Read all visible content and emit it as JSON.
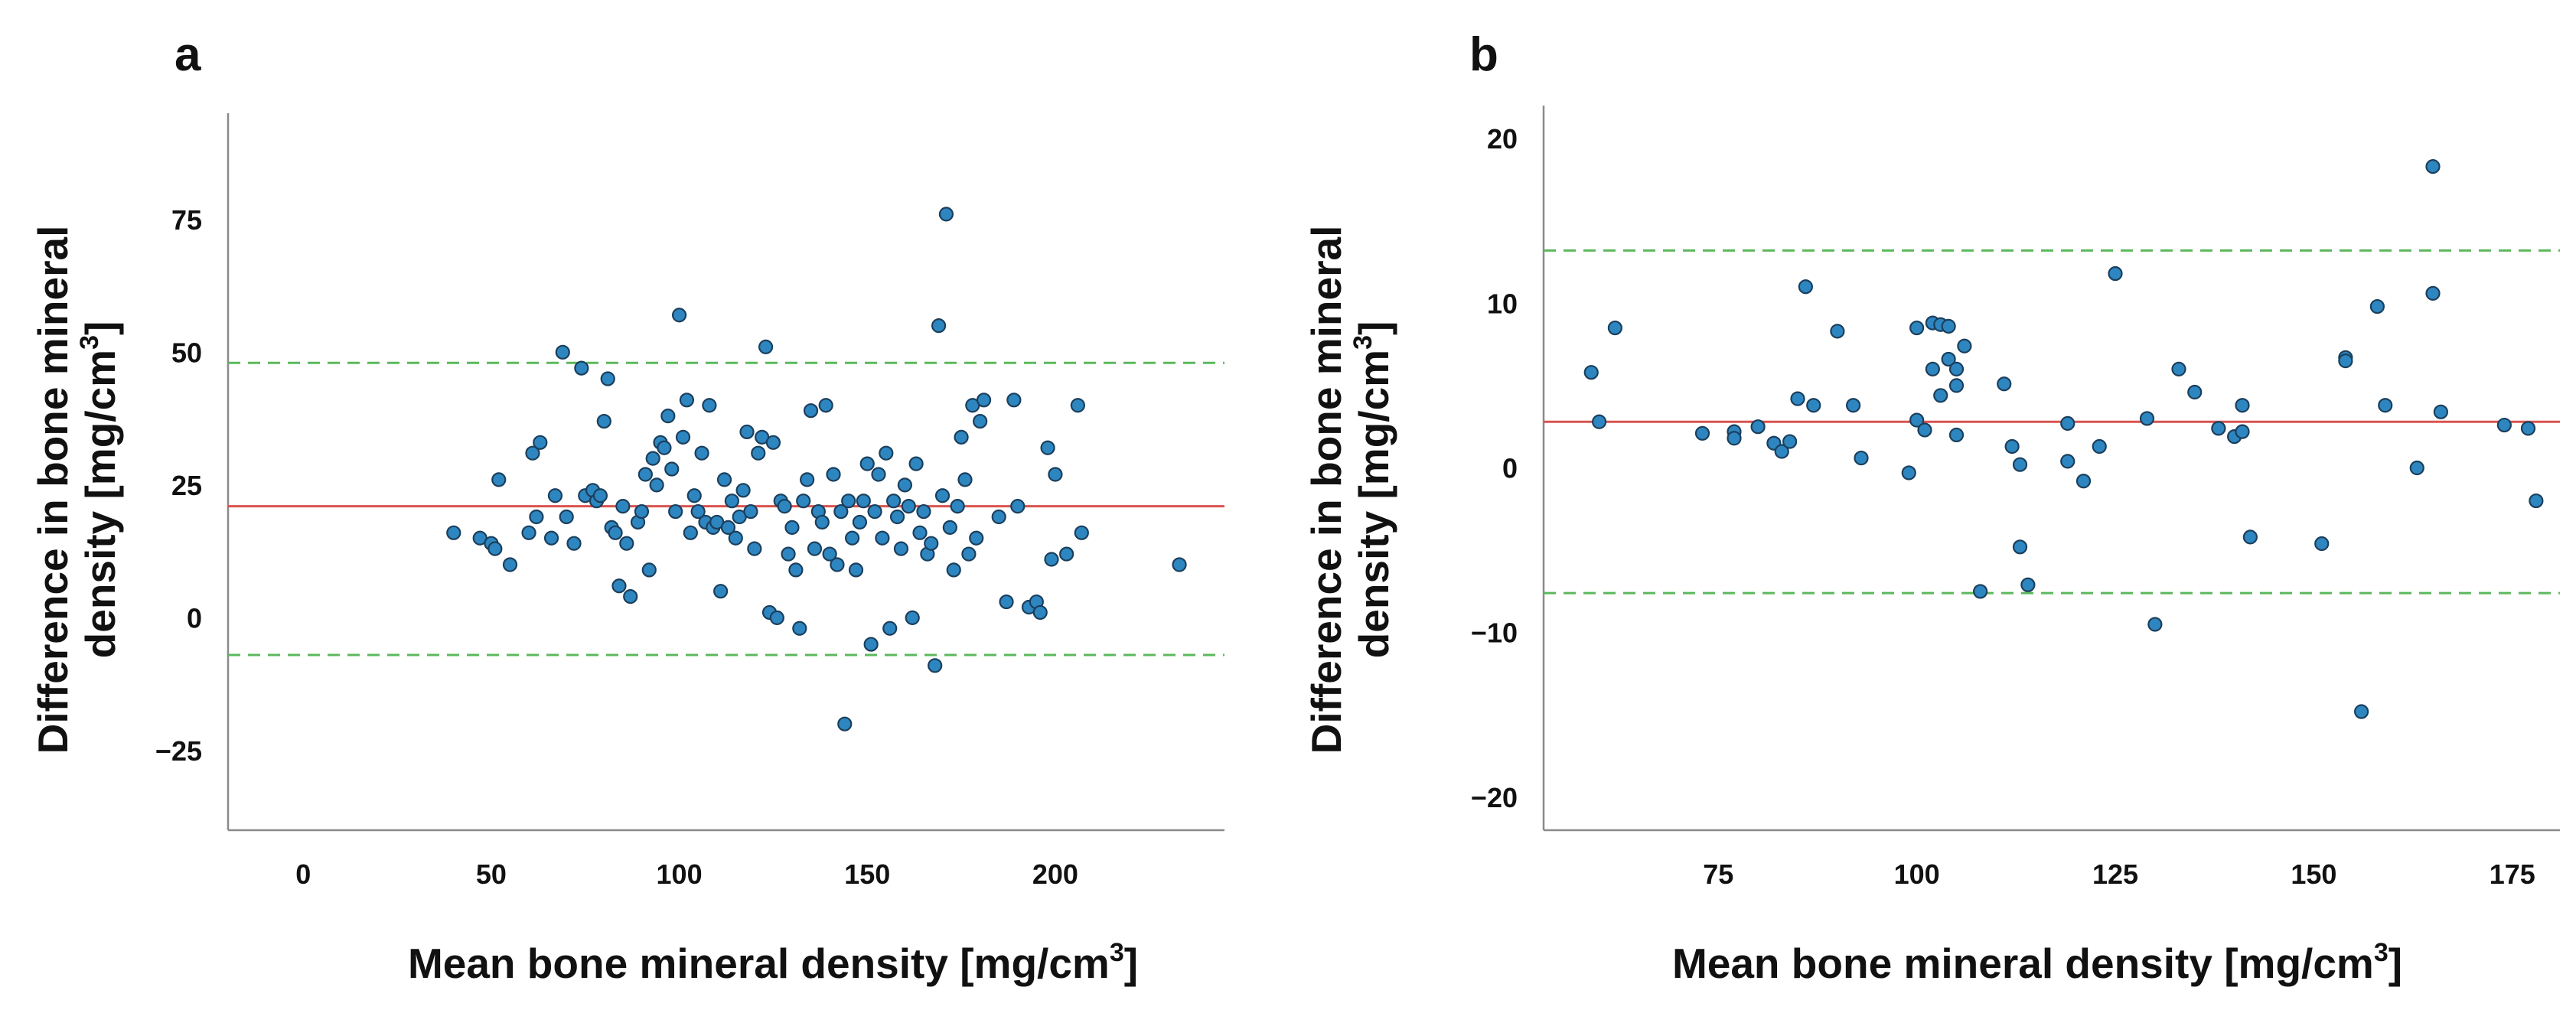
{
  "chart_data": [
    {
      "type": "scatter",
      "panel": "a",
      "title": "",
      "xlabel": "Mean bone mineral density [mg/cm",
      "xlabel_sup": "3",
      "xlabel_end": "]",
      "ylabel_line1": "Difference in bone mineral",
      "ylabel_line2": "density [mg/cm",
      "ylabel_sup": "3",
      "ylabel_end": "]",
      "xlim": [
        -20,
        245
      ],
      "ylim": [
        -40,
        95
      ],
      "xticks": [
        0,
        50,
        100,
        150,
        200
      ],
      "yticks": [
        -25,
        0,
        25,
        50,
        75
      ],
      "xtick_labels": [
        "0",
        "50",
        "100",
        "150",
        "200"
      ],
      "ytick_labels": [
        "−25",
        "0",
        "25",
        "50",
        "75"
      ],
      "mean_line": 21,
      "loa_upper": 48,
      "loa_lower": -7,
      "mean_color": "#d9534f",
      "loa_color": "#5cb85c",
      "point_color": "#2e86c1",
      "points": [
        [
          40,
          16
        ],
        [
          47,
          15
        ],
        [
          50,
          14
        ],
        [
          51,
          13
        ],
        [
          52,
          26
        ],
        [
          55,
          10
        ],
        [
          60,
          16
        ],
        [
          61,
          31
        ],
        [
          62,
          19
        ],
        [
          63,
          33
        ],
        [
          66,
          15
        ],
        [
          67,
          23
        ],
        [
          69,
          50
        ],
        [
          70,
          19
        ],
        [
          72,
          14
        ],
        [
          74,
          47
        ],
        [
          75,
          23
        ],
        [
          77,
          24
        ],
        [
          78,
          22
        ],
        [
          79,
          23
        ],
        [
          80,
          37
        ],
        [
          81,
          45
        ],
        [
          82,
          17
        ],
        [
          83,
          16
        ],
        [
          84,
          6
        ],
        [
          85,
          21
        ],
        [
          86,
          14
        ],
        [
          87,
          4
        ],
        [
          89,
          18
        ],
        [
          90,
          20
        ],
        [
          91,
          27
        ],
        [
          92,
          9
        ],
        [
          93,
          30
        ],
        [
          94,
          25
        ],
        [
          95,
          33
        ],
        [
          96,
          32
        ],
        [
          97,
          38
        ],
        [
          98,
          28
        ],
        [
          99,
          20
        ],
        [
          100,
          57
        ],
        [
          101,
          34
        ],
        [
          102,
          41
        ],
        [
          103,
          16
        ],
        [
          104,
          23
        ],
        [
          105,
          20
        ],
        [
          106,
          31
        ],
        [
          107,
          18
        ],
        [
          108,
          40
        ],
        [
          109,
          17
        ],
        [
          110,
          18
        ],
        [
          111,
          5
        ],
        [
          112,
          26
        ],
        [
          113,
          17
        ],
        [
          114,
          22
        ],
        [
          115,
          15
        ],
        [
          116,
          19
        ],
        [
          117,
          24
        ],
        [
          118,
          35
        ],
        [
          119,
          20
        ],
        [
          120,
          13
        ],
        [
          121,
          31
        ],
        [
          122,
          34
        ],
        [
          123,
          51
        ],
        [
          124,
          1
        ],
        [
          125,
          33
        ],
        [
          126,
          0
        ],
        [
          127,
          22
        ],
        [
          128,
          21
        ],
        [
          129,
          12
        ],
        [
          130,
          17
        ],
        [
          131,
          9
        ],
        [
          132,
          -2
        ],
        [
          133,
          22
        ],
        [
          134,
          26
        ],
        [
          135,
          39
        ],
        [
          136,
          13
        ],
        [
          137,
          20
        ],
        [
          138,
          18
        ],
        [
          139,
          40
        ],
        [
          140,
          12
        ],
        [
          141,
          27
        ],
        [
          142,
          10
        ],
        [
          143,
          20
        ],
        [
          144,
          -20
        ],
        [
          145,
          22
        ],
        [
          146,
          15
        ],
        [
          147,
          9
        ],
        [
          148,
          18
        ],
        [
          149,
          22
        ],
        [
          150,
          29
        ],
        [
          151,
          -5
        ],
        [
          152,
          20
        ],
        [
          153,
          27
        ],
        [
          154,
          15
        ],
        [
          155,
          31
        ],
        [
          156,
          -2
        ],
        [
          157,
          22
        ],
        [
          158,
          19
        ],
        [
          159,
          13
        ],
        [
          160,
          25
        ],
        [
          161,
          21
        ],
        [
          162,
          0
        ],
        [
          163,
          29
        ],
        [
          164,
          16
        ],
        [
          165,
          20
        ],
        [
          166,
          12
        ],
        [
          167,
          14
        ],
        [
          168,
          -9
        ],
        [
          169,
          55
        ],
        [
          170,
          23
        ],
        [
          171,
          76
        ],
        [
          172,
          17
        ],
        [
          173,
          9
        ],
        [
          174,
          21
        ],
        [
          175,
          34
        ],
        [
          176,
          26
        ],
        [
          177,
          12
        ],
        [
          178,
          40
        ],
        [
          179,
          15
        ],
        [
          180,
          37
        ],
        [
          181,
          41
        ],
        [
          185,
          19
        ],
        [
          187,
          3
        ],
        [
          189,
          41
        ],
        [
          190,
          21
        ],
        [
          193,
          2
        ],
        [
          195,
          3
        ],
        [
          196,
          1
        ],
        [
          198,
          32
        ],
        [
          199,
          11
        ],
        [
          200,
          27
        ],
        [
          203,
          12
        ],
        [
          206,
          40
        ],
        [
          207,
          16
        ],
        [
          233,
          10
        ]
      ]
    },
    {
      "type": "scatter",
      "panel": "b",
      "title": "",
      "xlabel": "Mean bone mineral density [mg/cm",
      "xlabel_sup": "3",
      "xlabel_end": "]",
      "ylabel_line1": "Difference in bone mineral",
      "ylabel_line2": "density [mg/cm",
      "ylabel_sup": "3",
      "ylabel_end": "]",
      "xlim": [
        53,
        181
      ],
      "ylim": [
        -22,
        22
      ],
      "xticks": [
        75,
        100,
        125,
        150,
        175
      ],
      "yticks": [
        -20,
        -10,
        0,
        10,
        20
      ],
      "xtick_labels": [
        "75",
        "100",
        "125",
        "150",
        "175"
      ],
      "ytick_labels": [
        "−20",
        "−10",
        "0",
        "10",
        "20"
      ],
      "mean_line": 2.8,
      "loa_upper": 13.2,
      "loa_lower": -7.6,
      "mean_color": "#d9534f",
      "loa_color": "#5cb85c",
      "point_color": "#2e86c1",
      "points": [
        [
          59,
          5.8
        ],
        [
          60,
          2.8
        ],
        [
          62,
          8.5
        ],
        [
          73,
          2.1
        ],
        [
          77,
          2.2
        ],
        [
          77,
          1.8
        ],
        [
          80,
          2.5
        ],
        [
          82,
          1.5
        ],
        [
          83,
          1
        ],
        [
          84,
          1.6
        ],
        [
          85,
          4.2
        ],
        [
          86,
          11
        ],
        [
          87,
          3.8
        ],
        [
          90,
          8.3
        ],
        [
          92,
          3.8
        ],
        [
          93,
          0.6
        ],
        [
          99,
          -0.3
        ],
        [
          100,
          8.5
        ],
        [
          100,
          2.9
        ],
        [
          101,
          2.3
        ],
        [
          102,
          8.8
        ],
        [
          102,
          6
        ],
        [
          103,
          8.7
        ],
        [
          103,
          4.4
        ],
        [
          104,
          8.6
        ],
        [
          104,
          6.6
        ],
        [
          105,
          6
        ],
        [
          105,
          5
        ],
        [
          105,
          2
        ],
        [
          106,
          7.4
        ],
        [
          108,
          -7.5
        ],
        [
          111,
          5.1
        ],
        [
          112,
          1.3
        ],
        [
          113,
          -4.8
        ],
        [
          113,
          0.2
        ],
        [
          114,
          -7.1
        ],
        [
          119,
          0.4
        ],
        [
          119,
          2.7
        ],
        [
          121,
          -0.8
        ],
        [
          123,
          1.3
        ],
        [
          125,
          11.8
        ],
        [
          129,
          3
        ],
        [
          130,
          -9.5
        ],
        [
          133,
          6
        ],
        [
          135,
          4.6
        ],
        [
          138,
          2.4
        ],
        [
          140,
          1.9
        ],
        [
          141,
          2.2
        ],
        [
          141,
          3.8
        ],
        [
          142,
          -4.2
        ],
        [
          151,
          -4.6
        ],
        [
          154,
          6.7
        ],
        [
          154,
          6.5
        ],
        [
          156,
          -14.8
        ],
        [
          158,
          9.8
        ],
        [
          159,
          3.8
        ],
        [
          163,
          0
        ],
        [
          165,
          18.3
        ],
        [
          165,
          10.6
        ],
        [
          166,
          3.4
        ],
        [
          174,
          2.6
        ],
        [
          177,
          2.4
        ],
        [
          178,
          -2
        ]
      ]
    }
  ]
}
